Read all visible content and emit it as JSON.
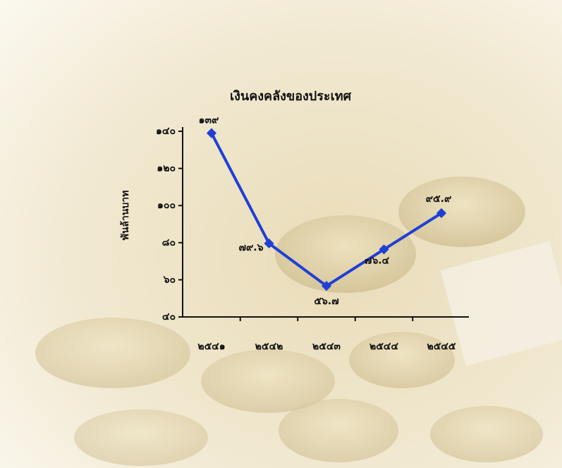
{
  "chart_data": {
    "type": "line",
    "title": "เงินคงคลังของประเทศ",
    "y_label": "พันล้านบาท",
    "categories": [
      "๒๕๔๑",
      "๒๕๔๒",
      "๒๕๔๓",
      "๒๕๔๔",
      "๒๕๔๕"
    ],
    "values": [
      139,
      79.6,
      56.7,
      76.4,
      95.9
    ],
    "value_labels": [
      "๑๓๙",
      "๗๙.๖",
      "๕๖.๗",
      "๗๖.๔",
      "๙๕.๙"
    ],
    "color": "#1f3fd6",
    "ylim": [
      40,
      140
    ],
    "yticks": [
      {
        "value": 40,
        "label": "๔๐"
      },
      {
        "value": 60,
        "label": "๖๐"
      },
      {
        "value": 80,
        "label": "๘๐"
      },
      {
        "value": 100,
        "label": "๑๐๐"
      },
      {
        "value": 120,
        "label": "๑๒๐"
      },
      {
        "value": 140,
        "label": "๑๔๐"
      }
    ]
  }
}
